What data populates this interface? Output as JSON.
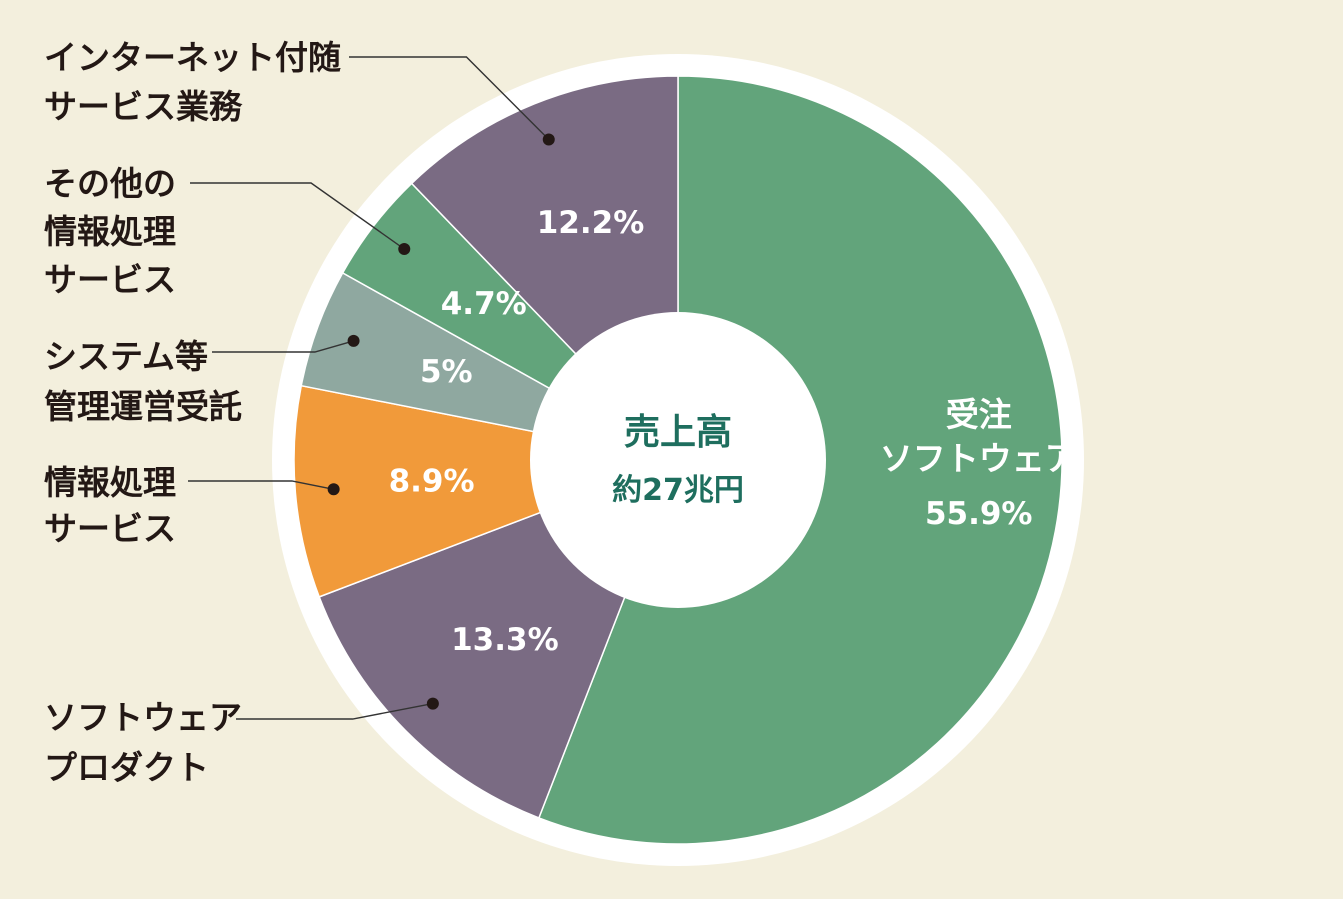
{
  "chart_data": {
    "type": "pie",
    "subtype": "donut",
    "center_label": {
      "title": "売上高",
      "value": "約27兆円"
    },
    "slices": [
      {
        "label": "受注\nソフトウェア",
        "value": 55.9,
        "value_label": "55.9%",
        "color": "#62a47b",
        "label_position": "inside"
      },
      {
        "label": "ソフトウェア\nプロダクト",
        "value": 13.3,
        "value_label": "13.3%",
        "color": "#7a6b83",
        "label_position": "outside-left"
      },
      {
        "label": "情報処理\nサービス",
        "value": 8.9,
        "value_label": "8.9%",
        "color": "#f19a3a",
        "label_position": "outside-left"
      },
      {
        "label": "システム等\n管理運営受託",
        "value": 5,
        "value_label": "5%",
        "color": "#8fa8a0",
        "label_position": "outside-left"
      },
      {
        "label": "その他の\n情報処理\nサービス",
        "value": 4.7,
        "value_label": "4.7%",
        "color": "#62a47b",
        "label_position": "outside-left"
      },
      {
        "label": "インターネット付随\nサービス業務",
        "value": 12.2,
        "value_label": "12.2%",
        "color": "#7a6b83",
        "label_position": "outside-left"
      }
    ],
    "start": "top",
    "direction": "clockwise",
    "legend": "none"
  }
}
